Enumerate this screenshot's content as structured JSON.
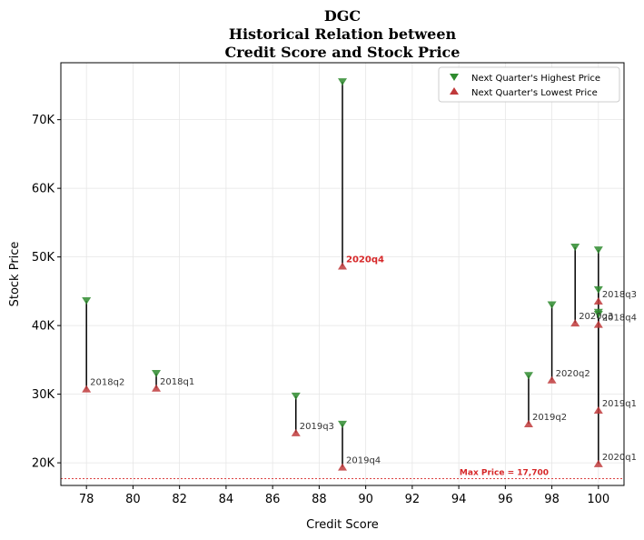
{
  "chart_data": {
    "type": "scatter",
    "title_lines": [
      "DGC",
      "Historical Relation between",
      "Credit Score and Stock Price"
    ],
    "xlabel": "Credit Score",
    "ylabel": "Stock Price",
    "xlim": [
      76.9,
      101.1
    ],
    "ylim": [
      16700,
      78300
    ],
    "x_ticks": [
      78,
      80,
      82,
      84,
      86,
      88,
      90,
      92,
      94,
      96,
      98,
      100
    ],
    "y_ticks": [
      20000,
      30000,
      40000,
      50000,
      60000,
      70000
    ],
    "y_tick_labels": [
      "20K",
      "30K",
      "40K",
      "50K",
      "60K",
      "70K"
    ],
    "grid": true,
    "legend_position": "top-right",
    "legend": [
      "Next Quarter's Highest Price",
      "Next Quarter's Lowest Price"
    ],
    "colors": {
      "high": "#2e8b2e",
      "low": "#c0393b",
      "highlight": "#d62728"
    },
    "points": [
      {
        "label": "2018q2",
        "x": 78,
        "high": 43600,
        "low": 30800,
        "highlight": false
      },
      {
        "label": "2018q1",
        "x": 81,
        "high": 33000,
        "low": 30900,
        "highlight": false
      },
      {
        "label": "2019q3",
        "x": 87,
        "high": 29700,
        "low": 24400,
        "highlight": false
      },
      {
        "label": "2019q4",
        "x": 89,
        "high": 25600,
        "low": 19400,
        "highlight": false
      },
      {
        "label": "2020q4",
        "x": 89,
        "high": 75500,
        "low": 48700,
        "highlight": true
      },
      {
        "label": "2019q2",
        "x": 97,
        "high": 32700,
        "low": 25700,
        "highlight": false
      },
      {
        "label": "2020q2",
        "x": 98,
        "high": 43000,
        "low": 32100,
        "highlight": false
      },
      {
        "label": "2020q3",
        "x": 99,
        "high": 51400,
        "low": 40400,
        "highlight": false
      },
      {
        "label": "2018q3",
        "x": 100,
        "high": 45200,
        "low": 43600,
        "highlight": false
      },
      {
        "label": "2018q4",
        "x": 100,
        "high": 41900,
        "low": 40200,
        "highlight": false
      },
      {
        "label": "2019q1",
        "x": 100,
        "high": 51000,
        "low": 27700,
        "highlight": false
      },
      {
        "label": "2020q1",
        "x": 100,
        "high": 41600,
        "low": 19900,
        "highlight": false
      }
    ],
    "max_price_line": {
      "value": 17700,
      "label": "Max Price = 17,700"
    }
  }
}
